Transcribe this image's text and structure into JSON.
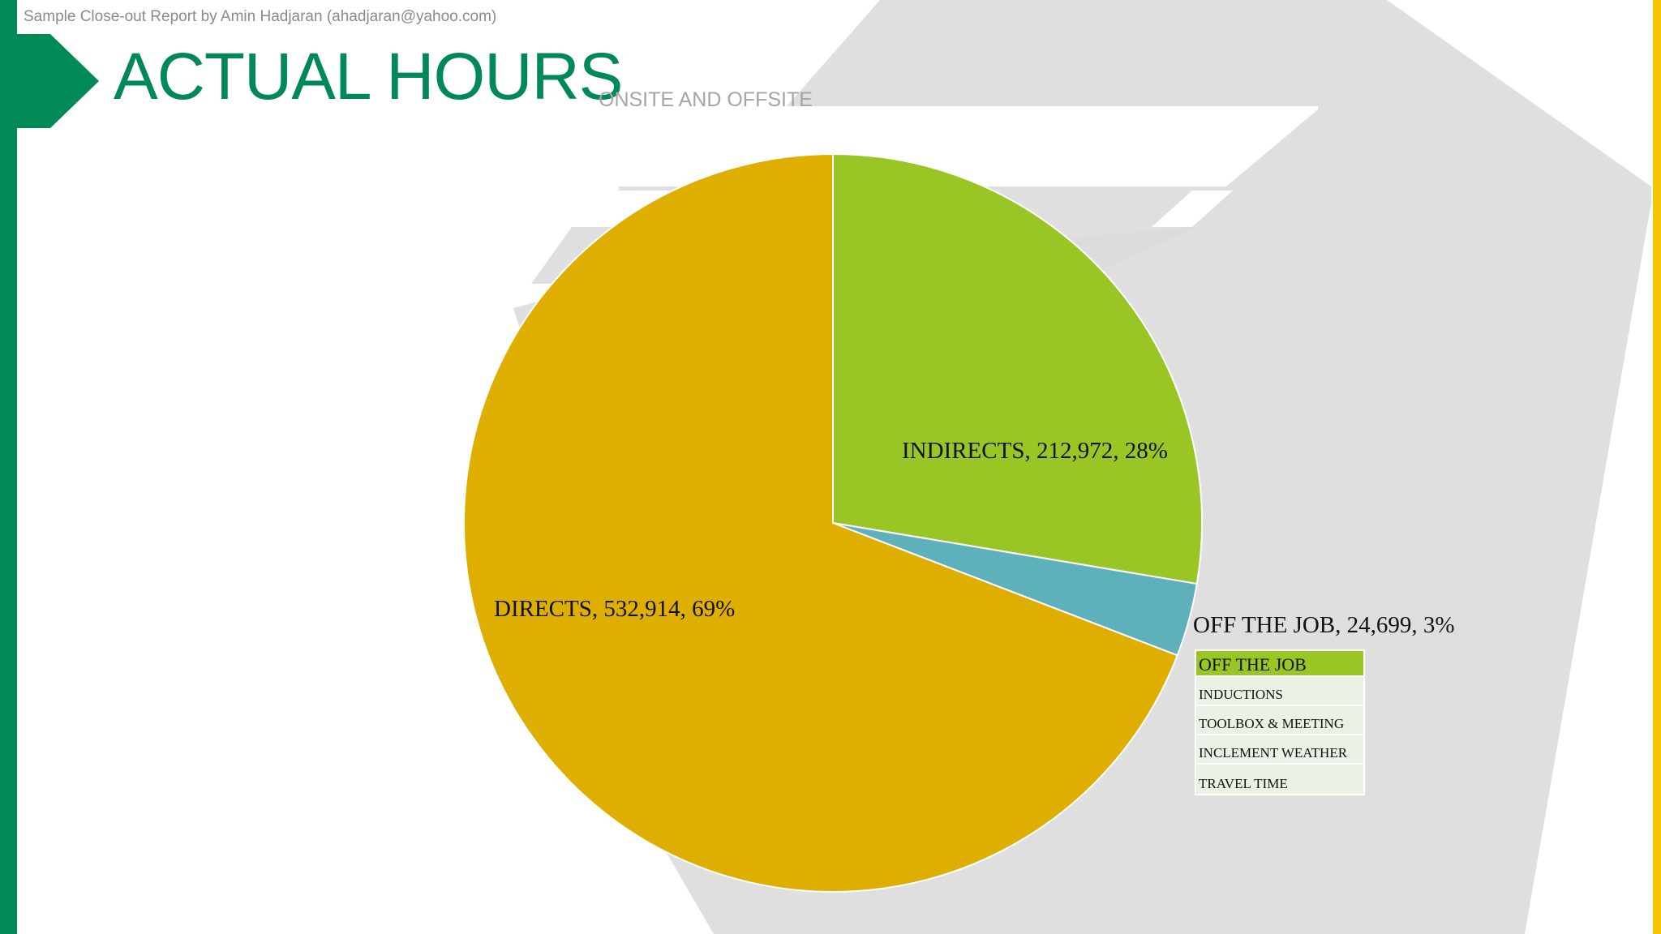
{
  "slide": {
    "header_note": "Sample Close-out Report by Amin Hadjaran (ahadjaran@yahoo.com)",
    "title": "ACTUAL HOURS",
    "subtitle": "ONSITE AND OFFSITE"
  },
  "colors": {
    "green_bar": "#008a55",
    "title_green": "#00875a",
    "yellow_bar": "#f2c500",
    "directs": "#deae00",
    "indirects": "#99c625",
    "off_the_job": "#5eb0bb",
    "legend_highlight": "#99c625",
    "legend_background": "#eaf2e6",
    "background_shape": "#dcdcdc"
  },
  "chart_data": {
    "type": "pie",
    "slices": [
      {
        "label": "INDIRECTS",
        "value": 212972,
        "percent": 28,
        "display": "INDIRECTS, 212,972, 28%",
        "color": "#99c625"
      },
      {
        "label": "OFF THE JOB",
        "value": 24699,
        "percent": 3,
        "display": "OFF THE JOB, 24,699, 3%",
        "color": "#5eb0bb"
      },
      {
        "label": "DIRECTS",
        "value": 532914,
        "percent": 69,
        "display": "DIRECTS, 532,914, 69%",
        "color": "#deae00"
      }
    ],
    "legend": {
      "items": [
        "OFF THE JOB",
        "INDUCTIONS",
        "TOOLBOX & MEETING",
        "INCLEMENT WEATHER",
        "TRAVEL TIME"
      ],
      "highlighted": "OFF THE JOB"
    }
  }
}
